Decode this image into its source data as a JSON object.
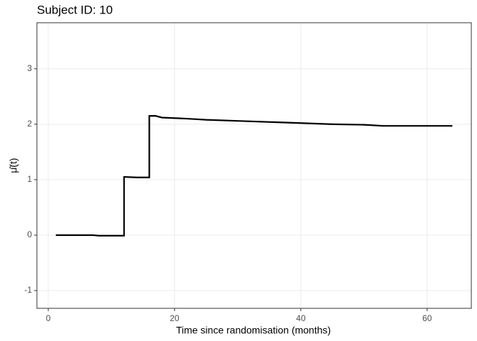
{
  "chart_data": {
    "type": "line",
    "title": "Subject ID: 10",
    "x_label": "Time since randomisation (months)",
    "y_label": "μ̂(t)",
    "x": [
      1.2,
      7,
      8,
      12,
      12,
      14,
      16,
      16,
      17,
      18,
      22,
      25,
      30,
      35,
      40,
      45,
      50,
      53,
      64
    ],
    "series": [
      {
        "color": "#000000",
        "values": [
          0,
          0,
          -0.01,
          -0.01,
          1.05,
          1.04,
          1.04,
          2.15,
          2.15,
          2.12,
          2.1,
          2.08,
          2.06,
          2.04,
          2.02,
          2.0,
          1.99,
          1.97,
          1.97
        ]
      }
    ],
    "xlim": [
      -1.8,
      67
    ],
    "xticks": [
      0,
      20,
      40,
      60
    ],
    "ylim": [
      -1.32,
      3.83
    ],
    "yticks": [
      -1,
      0,
      1,
      2,
      3
    ],
    "grid": true
  }
}
